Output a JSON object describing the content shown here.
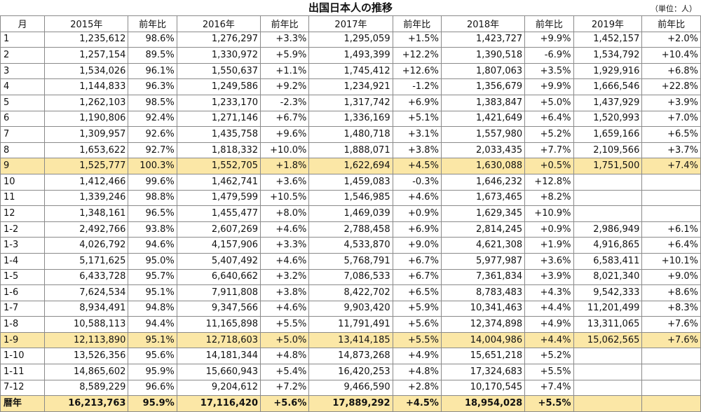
{
  "title": "出国日本人の推移",
  "unit": "（単位：人）",
  "headers": [
    "月",
    "2015年",
    "前年比",
    "2016年",
    "前年比",
    "2017年",
    "前年比",
    "2018年",
    "前年比",
    "2019年",
    "前年比"
  ],
  "rows": [
    [
      "1",
      "1,235,612",
      "98.6%",
      "1,276,297",
      "+3.3%",
      "1,295,059",
      "+1.5%",
      "1,423,727",
      "+9.9%",
      "1,452,157",
      "+2.0%"
    ],
    [
      "2",
      "1,257,154",
      "89.5%",
      "1,330,972",
      "+5.9%",
      "1,493,399",
      "+12.2%",
      "1,390,518",
      "-6.9%",
      "1,534,792",
      "+10.4%"
    ],
    [
      "3",
      "1,534,026",
      "96.1%",
      "1,550,637",
      "+1.1%",
      "1,745,412",
      "+12.6%",
      "1,807,063",
      "+3.5%",
      "1,929,916",
      "+6.8%"
    ],
    [
      "4",
      "1,144,833",
      "96.3%",
      "1,249,586",
      "+9.2%",
      "1,234,921",
      "-1.2%",
      "1,356,679",
      "+9.9%",
      "1,666,546",
      "+22.8%"
    ],
    [
      "5",
      "1,262,103",
      "98.5%",
      "1,233,170",
      "-2.3%",
      "1,317,742",
      "+6.9%",
      "1,383,847",
      "+5.0%",
      "1,437,929",
      "+3.9%"
    ],
    [
      "6",
      "1,190,806",
      "92.4%",
      "1,271,146",
      "+6.7%",
      "1,336,169",
      "+5.1%",
      "1,421,649",
      "+6.4%",
      "1,520,993",
      "+7.0%"
    ],
    [
      "7",
      "1,309,957",
      "92.6%",
      "1,435,758",
      "+9.6%",
      "1,480,718",
      "+3.1%",
      "1,557,980",
      "+5.2%",
      "1,659,166",
      "+6.5%"
    ],
    [
      "8",
      "1,653,622",
      "92.7%",
      "1,818,332",
      "+10.0%",
      "1,888,071",
      "+3.8%",
      "2,033,435",
      "+7.7%",
      "2,109,566",
      "+3.7%"
    ],
    [
      "9",
      "1,525,777",
      "100.3%",
      "1,552,705",
      "+1.8%",
      "1,622,694",
      "+4.5%",
      "1,630,088",
      "+0.5%",
      "1,751,500",
      "+7.4%"
    ],
    [
      "10",
      "1,412,466",
      "99.6%",
      "1,462,741",
      "+3.6%",
      "1,459,083",
      "-0.3%",
      "1,646,232",
      "+12.8%",
      "",
      ""
    ],
    [
      "11",
      "1,339,246",
      "98.8%",
      "1,479,599",
      "+10.5%",
      "1,546,985",
      "+4.6%",
      "1,673,465",
      "+8.2%",
      "",
      ""
    ],
    [
      "12",
      "1,348,161",
      "96.5%",
      "1,455,477",
      "+8.0%",
      "1,469,039",
      "+0.9%",
      "1,629,345",
      "+10.9%",
      "",
      ""
    ],
    [
      "1-2",
      "2,492,766",
      "93.8%",
      "2,607,269",
      "+4.6%",
      "2,788,458",
      "+6.9%",
      "2,814,245",
      "+0.9%",
      "2,986,949",
      "+6.1%"
    ],
    [
      "1-3",
      "4,026,792",
      "94.6%",
      "4,157,906",
      "+3.3%",
      "4,533,870",
      "+9.0%",
      "4,621,308",
      "+1.9%",
      "4,916,865",
      "+6.4%"
    ],
    [
      "1-4",
      "5,171,625",
      "95.0%",
      "5,407,492",
      "+4.6%",
      "5,768,791",
      "+6.7%",
      "5,977,987",
      "+3.6%",
      "6,583,411",
      "+10.1%"
    ],
    [
      "1-5",
      "6,433,728",
      "95.7%",
      "6,640,662",
      "+3.2%",
      "7,086,533",
      "+6.7%",
      "7,361,834",
      "+3.9%",
      "8,021,340",
      "+9.0%"
    ],
    [
      "1-6",
      "7,624,534",
      "95.1%",
      "7,911,808",
      "+3.8%",
      "8,422,702",
      "+6.5%",
      "8,783,483",
      "+4.3%",
      "9,542,333",
      "+8.6%"
    ],
    [
      "1-7",
      "8,934,491",
      "94.8%",
      "9,347,566",
      "+4.6%",
      "9,903,420",
      "+5.9%",
      "10,341,463",
      "+4.4%",
      "11,201,499",
      "+8.3%"
    ],
    [
      "1-8",
      "10,588,113",
      "94.4%",
      "11,165,898",
      "+5.5%",
      "11,791,491",
      "+5.6%",
      "12,374,898",
      "+4.9%",
      "13,311,065",
      "+7.6%"
    ],
    [
      "1-9",
      "12,113,890",
      "95.1%",
      "12,718,603",
      "+5.0%",
      "13,414,185",
      "+5.5%",
      "14,004,986",
      "+4.4%",
      "15,062,565",
      "+7.6%"
    ],
    [
      "1-10",
      "13,526,356",
      "95.6%",
      "14,181,344",
      "+4.8%",
      "14,873,268",
      "+4.9%",
      "15,651,218",
      "+5.2%",
      "",
      ""
    ],
    [
      "1-11",
      "14,865,602",
      "95.9%",
      "15,660,943",
      "+5.4%",
      "16,420,253",
      "+4.8%",
      "17,324,683",
      "+5.5%",
      "",
      ""
    ],
    [
      "7-12",
      "8,589,229",
      "96.6%",
      "9,204,612",
      "+7.2%",
      "9,466,590",
      "+2.8%",
      "10,170,545",
      "+7.4%",
      "",
      ""
    ],
    [
      "暦年",
      "16,213,763",
      "95.9%",
      "17,116,420",
      "+5.6%",
      "17,889,292",
      "+4.5%",
      "18,954,028",
      "+5.5%",
      "",
      ""
    ]
  ],
  "highlight_rows": [
    "9",
    "1-9"
  ],
  "total_row": "暦年",
  "colors": {
    "highlight": "#fbe7a6",
    "border": "#8a8a8a"
  }
}
